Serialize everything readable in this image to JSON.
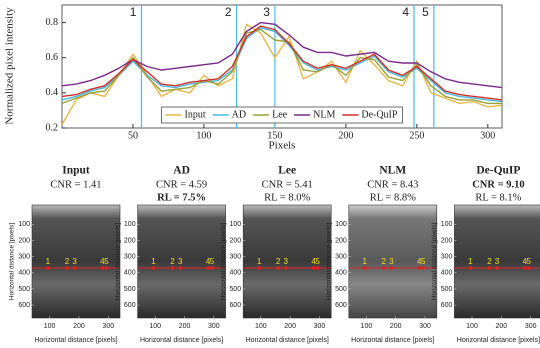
{
  "chart_data": {
    "type": "line",
    "xlabel": "Pixels",
    "ylabel": "Normalized pixel intensity",
    "x": [
      0,
      10,
      20,
      30,
      40,
      50,
      60,
      70,
      80,
      90,
      100,
      110,
      120,
      130,
      140,
      150,
      160,
      170,
      180,
      190,
      200,
      210,
      220,
      230,
      240,
      250,
      260,
      270,
      280,
      290,
      300,
      310
    ],
    "series": [
      {
        "name": "Input",
        "color": "#e6b84a",
        "values": [
          0.22,
          0.36,
          0.4,
          0.38,
          0.5,
          0.62,
          0.5,
          0.38,
          0.42,
          0.4,
          0.5,
          0.44,
          0.48,
          0.79,
          0.74,
          0.6,
          0.72,
          0.48,
          0.52,
          0.58,
          0.46,
          0.64,
          0.56,
          0.47,
          0.44,
          0.58,
          0.4,
          0.37,
          0.34,
          0.35,
          0.32,
          0.33
        ]
      },
      {
        "name": "AD",
        "color": "#4ab8e0",
        "values": [
          0.36,
          0.38,
          0.41,
          0.43,
          0.5,
          0.58,
          0.5,
          0.44,
          0.43,
          0.45,
          0.46,
          0.47,
          0.53,
          0.71,
          0.77,
          0.75,
          0.67,
          0.57,
          0.53,
          0.55,
          0.53,
          0.57,
          0.61,
          0.52,
          0.49,
          0.54,
          0.47,
          0.4,
          0.38,
          0.37,
          0.36,
          0.35
        ]
      },
      {
        "name": "Lee",
        "color": "#9aa03a",
        "values": [
          0.34,
          0.37,
          0.4,
          0.41,
          0.5,
          0.6,
          0.49,
          0.41,
          0.42,
          0.43,
          0.47,
          0.45,
          0.52,
          0.74,
          0.76,
          0.7,
          0.69,
          0.53,
          0.52,
          0.56,
          0.5,
          0.6,
          0.59,
          0.49,
          0.47,
          0.56,
          0.44,
          0.38,
          0.36,
          0.36,
          0.34,
          0.34
        ]
      },
      {
        "name": "NLM",
        "color": "#7a2a8a",
        "values": [
          0.44,
          0.45,
          0.47,
          0.5,
          0.54,
          0.59,
          0.55,
          0.53,
          0.54,
          0.55,
          0.56,
          0.57,
          0.62,
          0.75,
          0.8,
          0.79,
          0.73,
          0.66,
          0.63,
          0.63,
          0.61,
          0.62,
          0.63,
          0.58,
          0.57,
          0.57,
          0.52,
          0.48,
          0.46,
          0.45,
          0.44,
          0.43
        ]
      },
      {
        "name": "De-QuIP",
        "color": "#d03028",
        "values": [
          0.38,
          0.39,
          0.42,
          0.44,
          0.51,
          0.59,
          0.52,
          0.45,
          0.44,
          0.46,
          0.47,
          0.48,
          0.55,
          0.72,
          0.78,
          0.76,
          0.68,
          0.58,
          0.54,
          0.56,
          0.54,
          0.58,
          0.62,
          0.53,
          0.5,
          0.55,
          0.48,
          0.41,
          0.39,
          0.38,
          0.37,
          0.36
        ]
      }
    ],
    "markers": [
      {
        "x": 56,
        "label": "1"
      },
      {
        "x": 123,
        "label": "2"
      },
      {
        "x": 150,
        "label": "3"
      },
      {
        "x": 248,
        "label": "4"
      },
      {
        "x": 262,
        "label": "5"
      }
    ],
    "marker_color": "#4ab8e0",
    "xlim": [
      0,
      310
    ],
    "xticks": [
      50,
      100,
      150,
      200,
      250,
      300
    ],
    "ylim": [
      0.2,
      0.9
    ],
    "yticks": [
      0.2,
      0.4,
      0.6,
      0.8
    ],
    "legend": "bottom"
  },
  "panels": [
    {
      "title": "Input",
      "metrics": [
        {
          "text": "CNR = 1.41",
          "bold": false
        }
      ]
    },
    {
      "title": "AD",
      "metrics": [
        {
          "text": "CNR = 4.59",
          "bold": false
        },
        {
          "text": "RL = 7.5%",
          "bold": true
        }
      ]
    },
    {
      "title": "Lee",
      "metrics": [
        {
          "text": "CNR = 5.41",
          "bold": false
        },
        {
          "text": "RL = 8.0%",
          "bold": false
        }
      ]
    },
    {
      "title": "NLM",
      "metrics": [
        {
          "text": "CNR = 8.43",
          "bold": false
        },
        {
          "text": "RL = 8.8%",
          "bold": false
        }
      ]
    },
    {
      "title": "De-QuIP",
      "metrics": [
        {
          "text": "CNR = 9.10",
          "bold": true
        },
        {
          "text": "RL = 8.1%",
          "bold": false
        }
      ]
    }
  ],
  "panel_axes": {
    "xlabel": "Horizontal distance [pixels]",
    "ylabel": "Horizontal distance [pixels]",
    "xlim": [
      40,
      340
    ],
    "xticks": [
      100,
      200,
      300
    ],
    "ylim": [
      -20,
      680
    ],
    "yticks": [
      100,
      200,
      300,
      400,
      500,
      600
    ],
    "profile_row": 370,
    "profile_color": "#e02020",
    "label_color": "#f0e020"
  }
}
